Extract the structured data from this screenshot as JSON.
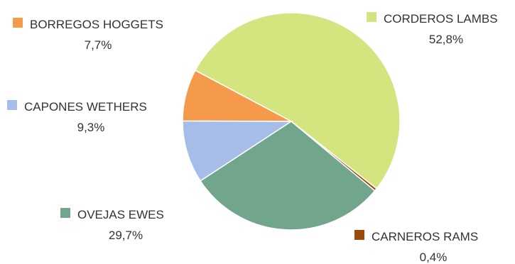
{
  "chart_data": {
    "type": "pie",
    "title": "",
    "slices": [
      {
        "name": "CORDEROS LAMBS",
        "value": 52.8,
        "label": "52,8%",
        "color": "#d4e47f"
      },
      {
        "name": "CARNEROS RAMS",
        "value": 0.4,
        "label": "0,4%",
        "color": "#9c4a0a"
      },
      {
        "name": "OVEJAS EWES",
        "value": 29.7,
        "label": "29,7%",
        "color": "#72a68c"
      },
      {
        "name": "CAPONES WETHERS",
        "value": 9.3,
        "label": "9,3%",
        "color": "#a6bde8"
      },
      {
        "name": "BORREGOS HOGGETS",
        "value": 7.7,
        "label": "7,7%",
        "color": "#f59a4a"
      }
    ],
    "legend": "labels-around"
  }
}
